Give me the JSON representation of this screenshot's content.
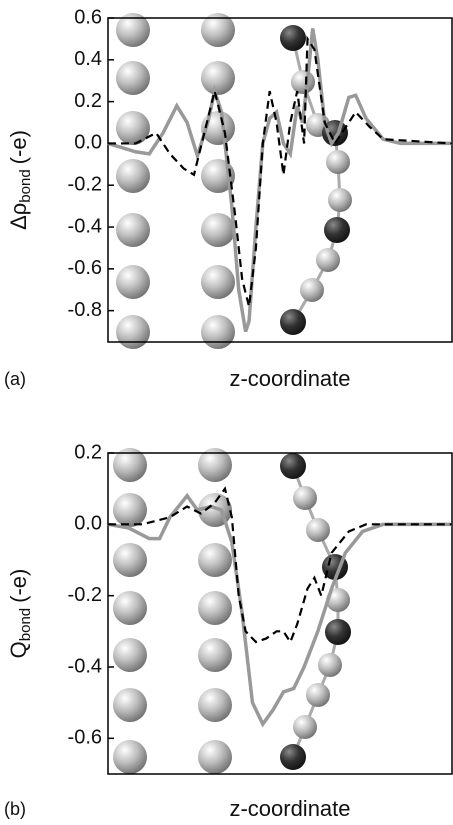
{
  "chart_data": [
    {
      "type": "line",
      "panel_label": "(a)",
      "xlabel": "z-coordinate",
      "ylabel": {
        "main": "Δρ",
        "sub": "bond",
        "unit": "(-e)"
      },
      "xlim": [
        0,
        100
      ],
      "ylim": [
        -0.95,
        0.6
      ],
      "yticks": [
        0.6,
        0.4,
        0.2,
        {
          "value": 0,
          "label": "0.0"
        },
        -0.2,
        -0.4,
        -0.6,
        -0.8
      ],
      "series": [
        {
          "color": "#999999",
          "dash": false,
          "x": [
            0,
            4,
            8,
            12,
            16,
            20,
            23,
            26,
            29,
            31,
            33,
            36,
            38,
            40,
            41,
            43,
            45,
            47,
            49,
            51,
            53,
            55,
            56.5,
            58,
            59.5,
            61,
            63,
            65,
            67,
            70,
            72,
            75,
            80,
            85,
            90,
            100
          ],
          "values": [
            0,
            -0.02,
            -0.04,
            -0.05,
            0.05,
            0.18,
            0.1,
            -0.06,
            0.1,
            0.25,
            0.15,
            -0.3,
            -0.7,
            -0.9,
            -0.85,
            -0.4,
            0.0,
            0.12,
            0.15,
            0.0,
            -0.05,
            0.18,
            0.1,
            0.3,
            0.55,
            0.4,
            0.1,
            0.0,
            0.05,
            0.22,
            0.23,
            0.12,
            0.02,
            0.0,
            0.0,
            0.0
          ]
        },
        {
          "color": "#000000",
          "dash": true,
          "x": [
            0,
            8,
            14,
            18,
            22,
            25,
            28,
            31,
            34,
            37,
            39,
            41,
            43,
            45,
            47,
            49,
            51,
            53,
            55,
            57,
            58,
            60,
            63,
            66,
            68,
            72,
            76,
            80,
            100
          ],
          "values": [
            0,
            0,
            0.05,
            -0.05,
            -0.12,
            -0.15,
            0.05,
            0.25,
            0.05,
            -0.35,
            -0.65,
            -0.78,
            -0.5,
            0.0,
            0.25,
            0.1,
            -0.15,
            0.1,
            0.25,
            0.0,
            0.5,
            0.45,
            0.1,
            0.0,
            0.05,
            0.15,
            0.08,
            0.02,
            0
          ]
        }
      ]
    },
    {
      "type": "line",
      "panel_label": "(b)",
      "xlabel": "z-coordinate",
      "ylabel": {
        "main": "Q",
        "sub": "bond",
        "unit": "(-e)"
      },
      "xlim": [
        0,
        100
      ],
      "ylim": [
        -0.7,
        0.2
      ],
      "yticks": [
        0.2,
        {
          "value": 0,
          "label": "0.0"
        },
        -0.2,
        -0.4,
        -0.6
      ],
      "series": [
        {
          "color": "#999999",
          "dash": false,
          "x": [
            0,
            6,
            12,
            15,
            18,
            23,
            26,
            30,
            33,
            36,
            39,
            42,
            45,
            48,
            51,
            54,
            57,
            61,
            65,
            69,
            74,
            80,
            90,
            100
          ],
          "values": [
            0,
            -0.01,
            -0.04,
            -0.04,
            0.02,
            0.08,
            0.04,
            0.05,
            0.04,
            -0.05,
            -0.25,
            -0.5,
            -0.56,
            -0.52,
            -0.47,
            -0.46,
            -0.4,
            -0.3,
            -0.18,
            -0.08,
            -0.02,
            0,
            0,
            0
          ]
        },
        {
          "color": "#000000",
          "dash": true,
          "x": [
            0,
            10,
            18,
            23,
            27,
            31,
            34,
            36,
            38,
            40,
            43,
            46,
            49,
            51,
            53,
            55,
            58,
            60,
            62,
            65,
            70,
            75,
            100
          ],
          "values": [
            0,
            0,
            0.02,
            0.05,
            0.03,
            0.06,
            0.1,
            0.02,
            -0.2,
            -0.3,
            -0.33,
            -0.32,
            -0.3,
            -0.3,
            -0.33,
            -0.28,
            -0.18,
            -0.15,
            -0.2,
            -0.08,
            -0.02,
            0,
            0
          ]
        }
      ]
    }
  ]
}
